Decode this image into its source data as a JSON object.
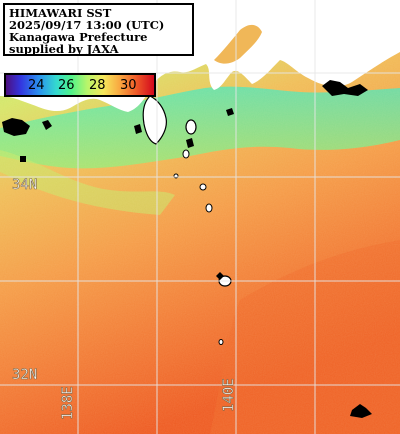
{
  "title": {
    "lines": [
      "HIMAWARI SST",
      "2025/09/17 13:00 (UTC)",
      "Kanagawa Prefecture",
      "supplied by JAXA"
    ]
  },
  "legend": {
    "ticks": [
      "24",
      "26",
      "28",
      "30"
    ],
    "colors": {
      "cold": "#4d0f80",
      "mid": "#4ff28a",
      "warm": "#f6e75c",
      "hot": "#d3081d",
      "land": "#ffffff",
      "cloud": "#000000",
      "grid": "#e6e6e6"
    }
  },
  "grid": {
    "latitude_labels": [
      "34N",
      "32N"
    ],
    "longitude_labels": [
      "138E",
      "140E"
    ]
  }
}
